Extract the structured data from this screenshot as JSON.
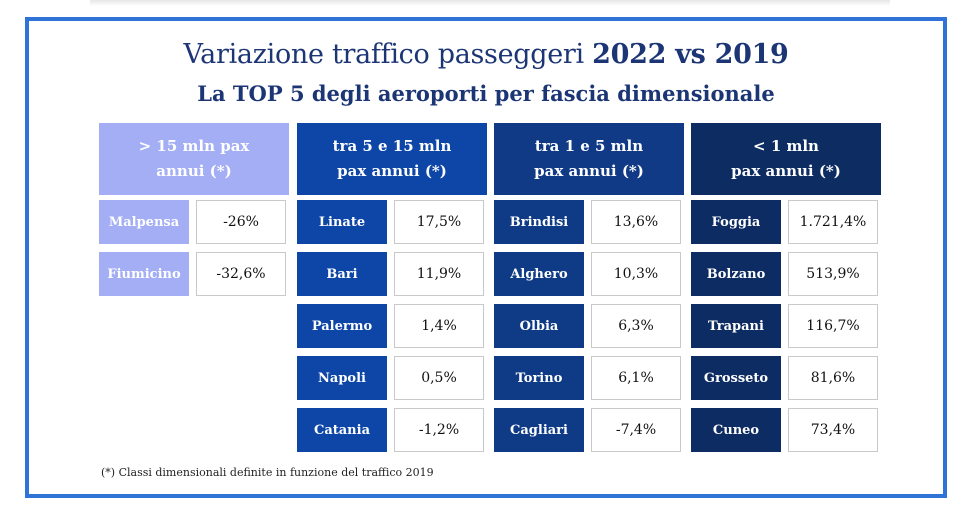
{
  "title": {
    "prefix": "Variazione traffico passeggeri ",
    "bold": "2022 vs 2019"
  },
  "subtitle": "La TOP 5 degli aeroporti per fascia dimensionale",
  "colors": {
    "frame": "#2f72d8",
    "cat1_header": "#a3aef5",
    "cat1_cell": "#a3aef5",
    "cat2_header": "#0e46a8",
    "cat2_cell": "#0e46a8",
    "cat3_header": "#113a86",
    "cat3_cell": "#0f3b86",
    "cat4_header": "#0c2c62",
    "cat4_cell": "#0d2c63"
  },
  "categories": [
    {
      "label": "> 15 mln pax\nannui (*)",
      "airports": [
        {
          "name": "Malpensa",
          "value": "-26%"
        },
        {
          "name": "Fiumicino",
          "value": "-32,6%"
        }
      ]
    },
    {
      "label": "tra 5 e 15 mln\npax annui (*)",
      "airports": [
        {
          "name": "Linate",
          "value": "17,5%"
        },
        {
          "name": "Bari",
          "value": "11,9%"
        },
        {
          "name": "Palermo",
          "value": "1,4%"
        },
        {
          "name": "Napoli",
          "value": "0,5%"
        },
        {
          "name": "Catania",
          "value": "-1,2%"
        }
      ]
    },
    {
      "label": "tra 1 e 5 mln\npax annui (*)",
      "airports": [
        {
          "name": "Brindisi",
          "value": "13,6%"
        },
        {
          "name": "Alghero",
          "value": "10,3%"
        },
        {
          "name": "Olbia",
          "value": "6,3%"
        },
        {
          "name": "Torino",
          "value": "6,1%"
        },
        {
          "name": "Cagliari",
          "value": "-7,4%"
        }
      ]
    },
    {
      "label": "< 1 mln\npax annui (*)",
      "airports": [
        {
          "name": "Foggia",
          "value": "1.721,4%"
        },
        {
          "name": "Bolzano",
          "value": "513,9%"
        },
        {
          "name": "Trapani",
          "value": "116,7%"
        },
        {
          "name": "Grosseto",
          "value": "81,6%"
        },
        {
          "name": "Cuneo",
          "value": "73,4%"
        }
      ]
    }
  ],
  "footnote": "(*) Classi dimensionali definite in funzione del traffico 2019"
}
